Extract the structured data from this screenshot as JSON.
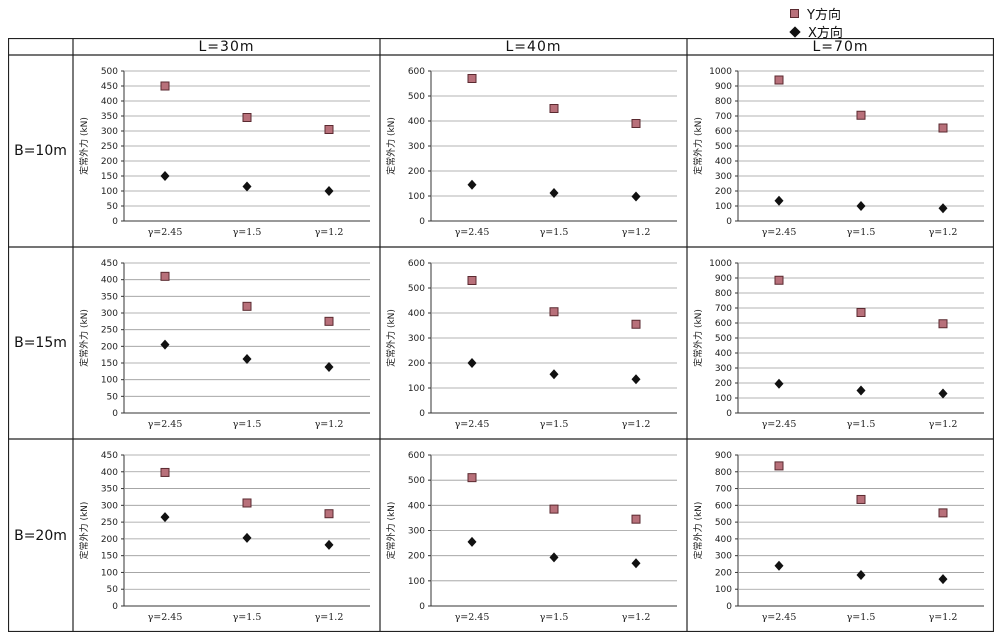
{
  "legend": {
    "y_label": "Y方向",
    "x_label": "X方向",
    "y_color": "#b8707a",
    "x_color": "#111111"
  },
  "columns": [
    "L=30m",
    "L=40m",
    "L=70m"
  ],
  "rows": [
    "B=10m",
    "B=15m",
    "B=20m"
  ],
  "chart_data": [
    {
      "type": "scatter",
      "row": "B=10m",
      "col": "L=30m",
      "ylabel": "定常外力 (kN)",
      "categories": [
        "γ=2.45",
        "γ=1.5",
        "γ=1.2"
      ],
      "ylim": [
        0,
        500
      ],
      "ytick_step": 50,
      "grid": true,
      "series": [
        {
          "name": "Y方向",
          "values": [
            450,
            345,
            305
          ]
        },
        {
          "name": "X方向",
          "values": [
            150,
            115,
            100
          ]
        }
      ]
    },
    {
      "type": "scatter",
      "row": "B=10m",
      "col": "L=40m",
      "ylabel": "定常外力 (kN)",
      "categories": [
        "γ=2.45",
        "γ=1.5",
        "γ=1.2"
      ],
      "ylim": [
        0,
        600
      ],
      "ytick_step": 100,
      "grid": true,
      "series": [
        {
          "name": "Y方向",
          "values": [
            570,
            450,
            390
          ]
        },
        {
          "name": "X方向",
          "values": [
            145,
            112,
            98
          ]
        }
      ]
    },
    {
      "type": "scatter",
      "row": "B=10m",
      "col": "L=70m",
      "ylabel": "定常外力 (kN)",
      "categories": [
        "γ=2.45",
        "γ=1.5",
        "γ=1.2"
      ],
      "ylim": [
        0,
        1000
      ],
      "ytick_step": 100,
      "grid": true,
      "series": [
        {
          "name": "Y方向",
          "values": [
            940,
            705,
            620
          ]
        },
        {
          "name": "X方向",
          "values": [
            135,
            100,
            85
          ]
        }
      ]
    },
    {
      "type": "scatter",
      "row": "B=15m",
      "col": "L=30m",
      "ylabel": "定常外力 (kN)",
      "categories": [
        "γ=2.45",
        "γ=1.5",
        "γ=1.2"
      ],
      "ylim": [
        0,
        450
      ],
      "ytick_step": 50,
      "grid": true,
      "series": [
        {
          "name": "Y方向",
          "values": [
            410,
            320,
            275
          ]
        },
        {
          "name": "X方向",
          "values": [
            205,
            162,
            138
          ]
        }
      ]
    },
    {
      "type": "scatter",
      "row": "B=15m",
      "col": "L=40m",
      "ylabel": "定常外力 (kN)",
      "categories": [
        "γ=2.45",
        "γ=1.5",
        "γ=1.2"
      ],
      "ylim": [
        0,
        600
      ],
      "ytick_step": 100,
      "grid": true,
      "series": [
        {
          "name": "Y方向",
          "values": [
            530,
            405,
            355
          ]
        },
        {
          "name": "X方向",
          "values": [
            200,
            155,
            135
          ]
        }
      ]
    },
    {
      "type": "scatter",
      "row": "B=15m",
      "col": "L=70m",
      "ylabel": "定常外力 (kN)",
      "categories": [
        "γ=2.45",
        "γ=1.5",
        "γ=1.2"
      ],
      "ylim": [
        0,
        1000
      ],
      "ytick_step": 100,
      "grid": true,
      "series": [
        {
          "name": "Y方向",
          "values": [
            885,
            670,
            595
          ]
        },
        {
          "name": "X方向",
          "values": [
            195,
            150,
            130
          ]
        }
      ]
    },
    {
      "type": "scatter",
      "row": "B=20m",
      "col": "L=30m",
      "ylabel": "定常外力 (kN)",
      "categories": [
        "γ=2.45",
        "γ=1.5",
        "γ=1.2"
      ],
      "ylim": [
        0,
        450
      ],
      "ytick_step": 50,
      "grid": true,
      "series": [
        {
          "name": "Y方向",
          "values": [
            398,
            307,
            275
          ]
        },
        {
          "name": "X方向",
          "values": [
            265,
            203,
            182
          ]
        }
      ]
    },
    {
      "type": "scatter",
      "row": "B=20m",
      "col": "L=40m",
      "ylabel": "定常外力 (kN)",
      "categories": [
        "γ=2.45",
        "γ=1.5",
        "γ=1.2"
      ],
      "ylim": [
        0,
        600
      ],
      "ytick_step": 100,
      "grid": true,
      "series": [
        {
          "name": "Y方向",
          "values": [
            510,
            385,
            345
          ]
        },
        {
          "name": "X方向",
          "values": [
            255,
            193,
            170
          ]
        }
      ]
    },
    {
      "type": "scatter",
      "row": "B=20m",
      "col": "L=70m",
      "ylabel": "定常外力 (kN)",
      "categories": [
        "γ=2.45",
        "γ=1.5",
        "γ=1.2"
      ],
      "ylim": [
        0,
        900
      ],
      "ytick_step": 100,
      "grid": true,
      "series": [
        {
          "name": "Y方向",
          "values": [
            835,
            635,
            555
          ]
        },
        {
          "name": "X方向",
          "values": [
            240,
            185,
            160
          ]
        }
      ]
    }
  ]
}
